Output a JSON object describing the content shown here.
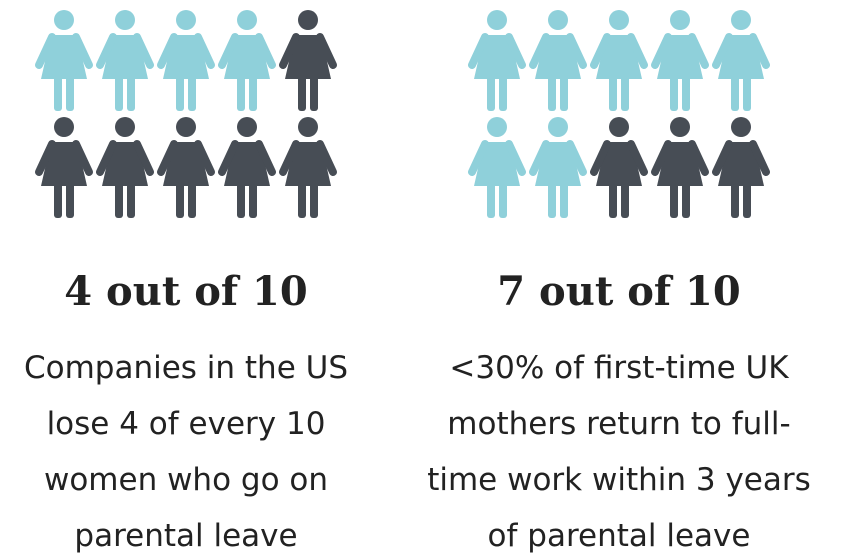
{
  "chart_data": [
    {
      "type": "pictogram",
      "title": "4 out of 10",
      "value": 4,
      "total": 10,
      "per_row": 5,
      "color": "#8fd0da",
      "rest_color": "#474d55",
      "caption": [
        "Companies in the US",
        "lose 4 of every 10",
        "women who go on",
        "parental leave"
      ]
    },
    {
      "type": "pictogram",
      "title": "7 out of 10",
      "value": 7,
      "total": 10,
      "per_row": 5,
      "color": "#8fd0da",
      "rest_color": "#474d55",
      "caption": [
        "<30% of first-time UK",
        "mothers return to full-",
        "time work within 3 years",
        "of parental leave"
      ]
    }
  ]
}
